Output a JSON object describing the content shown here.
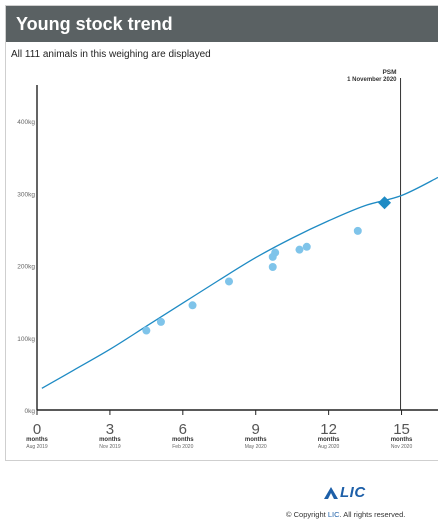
{
  "header": {
    "title": "Young stock trend"
  },
  "subtitle": "All 111 animals in this weighing are displayed",
  "footer": {
    "logo": "LIC",
    "copyright_prefix": "© Copyright",
    "copyright_brand": "LIC",
    "copyright_suffix": ". All rights reserved."
  },
  "colors": {
    "header_bg": "#5a6163",
    "line": "#1f8bc4",
    "point": "#7fc4ea",
    "highlight": "#1f8bc4",
    "logo": "#1d5fa8"
  },
  "chart_data": {
    "type": "scatter",
    "title": "",
    "xlabel": "",
    "ylabel": "",
    "xlim": [
      0,
      16.5
    ],
    "ylim": [
      0,
      450
    ],
    "y_ticks": [
      {
        "value": 0,
        "label": "0kg"
      },
      {
        "value": 100,
        "label": "100kg"
      },
      {
        "value": 200,
        "label": "200kg"
      },
      {
        "value": 300,
        "label": "300kg"
      },
      {
        "value": 400,
        "label": "400kg"
      }
    ],
    "x_ticks": [
      {
        "value": 0,
        "label": "0",
        "unit": "months",
        "date": "Aug 2019"
      },
      {
        "value": 3,
        "label": "3",
        "unit": "months",
        "date": "Nov 2019"
      },
      {
        "value": 6,
        "label": "6",
        "unit": "months",
        "date": "Feb 2020"
      },
      {
        "value": 9,
        "label": "9",
        "unit": "months",
        "date": "May 2020"
      },
      {
        "value": 12,
        "label": "12",
        "unit": "months",
        "date": "Aug 2020"
      },
      {
        "value": 15,
        "label": "15",
        "unit": "months",
        "date": "Nov 2020"
      }
    ],
    "marker": {
      "x": 15,
      "label": "PSM",
      "date": "1 November 2020"
    },
    "target_line": [
      {
        "x": 0.2,
        "y": 30
      },
      {
        "x": 1.5,
        "y": 55
      },
      {
        "x": 3,
        "y": 84
      },
      {
        "x": 4.5,
        "y": 116
      },
      {
        "x": 6,
        "y": 148
      },
      {
        "x": 7.5,
        "y": 180
      },
      {
        "x": 9,
        "y": 211
      },
      {
        "x": 10.5,
        "y": 238
      },
      {
        "x": 12,
        "y": 262
      },
      {
        "x": 13.5,
        "y": 283
      },
      {
        "x": 15,
        "y": 297
      },
      {
        "x": 16.5,
        "y": 322
      }
    ],
    "points": [
      {
        "x": 4.5,
        "y": 110
      },
      {
        "x": 5.1,
        "y": 122
      },
      {
        "x": 6.4,
        "y": 145
      },
      {
        "x": 7.9,
        "y": 178
      },
      {
        "x": 9.7,
        "y": 198
      },
      {
        "x": 9.7,
        "y": 212
      },
      {
        "x": 9.8,
        "y": 218
      },
      {
        "x": 10.8,
        "y": 222
      },
      {
        "x": 11.1,
        "y": 226
      },
      {
        "x": 13.2,
        "y": 248
      }
    ],
    "highlight_point": {
      "x": 14.3,
      "y": 287
    }
  }
}
